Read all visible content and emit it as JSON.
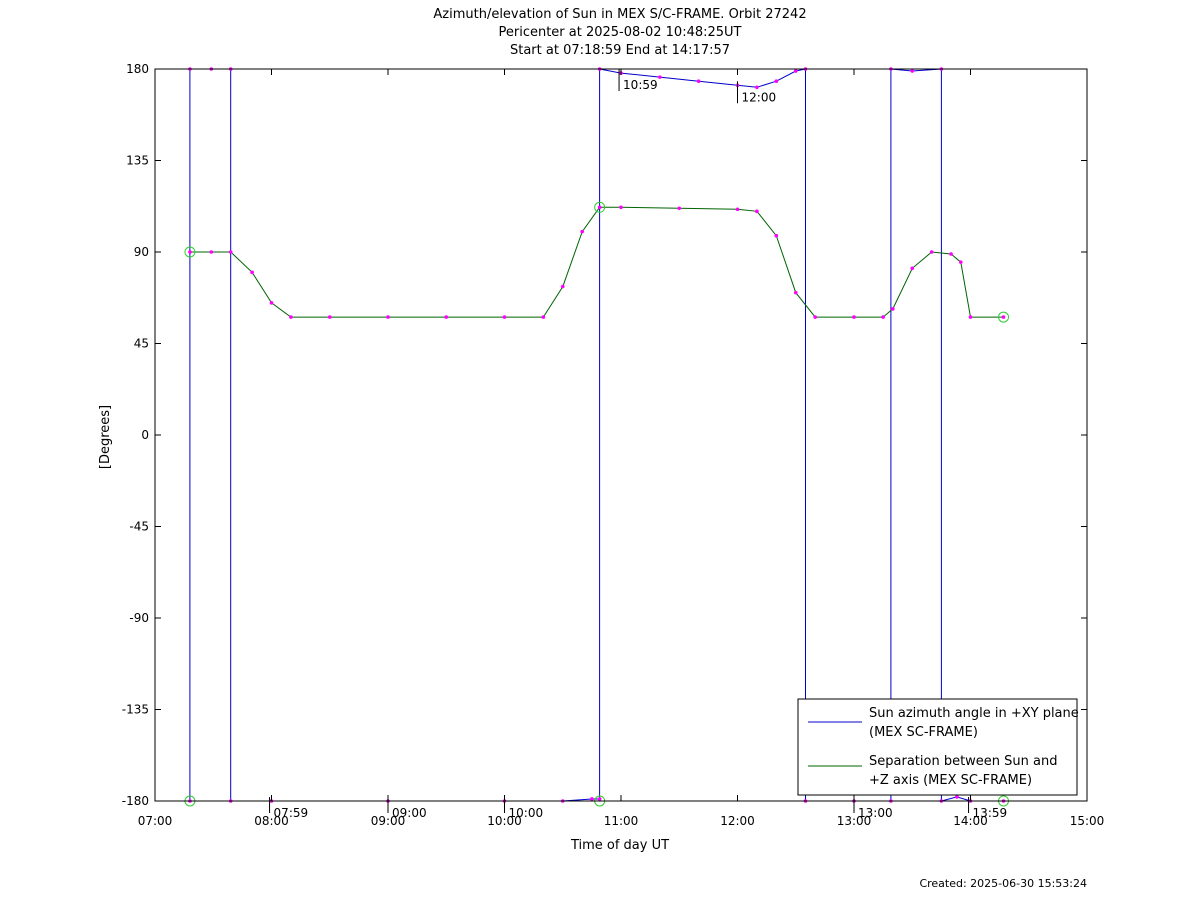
{
  "chart_data": {
    "type": "line",
    "title": [
      "Azimuth/elevation of Sun in MEX S/C-FRAME.  Orbit 27242",
      "Pericenter at 2025-08-02 10:48:25UT",
      "Start at 07:18:59 End at 14:17:57"
    ],
    "xlabel": "Time of day UT",
    "ylabel": "[Degrees]",
    "xlim": [
      "07:00",
      "15:00"
    ],
    "ylim": [
      -180,
      180
    ],
    "xticks": [
      "07:00",
      "08:00",
      "09:00",
      "10:00",
      "11:00",
      "12:00",
      "13:00",
      "14:00",
      "15:00"
    ],
    "yticks": [
      180,
      135,
      90,
      45,
      0,
      -45,
      -90,
      -135,
      -180
    ],
    "grid": false,
    "legend_position": "bottom-right",
    "series": [
      {
        "name": "Sun azimuth angle in +XY plane (MEX SC-FRAME)",
        "color": "#0000cc",
        "points": [
          [
            "07:18",
            -180
          ],
          [
            "07:18",
            180
          ],
          [
            "07:29",
            180
          ],
          [
            "07:39",
            180
          ],
          [
            "07:39",
            -180
          ],
          [
            "08:00",
            -180
          ],
          [
            "09:00",
            -180
          ],
          [
            "10:00",
            -180
          ],
          [
            "10:30",
            -180
          ],
          [
            "10:45",
            -179
          ],
          [
            "10:49",
            -179
          ],
          [
            "10:49",
            180
          ],
          [
            "11:00",
            178
          ],
          [
            "11:20",
            176
          ],
          [
            "11:40",
            174
          ],
          [
            "12:00",
            172
          ],
          [
            "12:10",
            171
          ],
          [
            "12:20",
            174
          ],
          [
            "12:30",
            179
          ],
          [
            "12:35",
            180
          ],
          [
            "12:35",
            -180
          ],
          [
            "13:00",
            -180
          ],
          [
            "13:19",
            -180
          ],
          [
            "13:19",
            180
          ],
          [
            "13:30",
            179
          ],
          [
            "13:45",
            180
          ],
          [
            "13:45",
            -180
          ],
          [
            "13:53",
            -178
          ],
          [
            "14:00",
            -180
          ],
          [
            "14:17",
            -180
          ]
        ]
      },
      {
        "name": "Separation between Sun and +Z axis (MEX SC-FRAME)",
        "color": "#006400",
        "points": [
          [
            "07:18",
            90
          ],
          [
            "07:29",
            90
          ],
          [
            "07:39",
            90
          ],
          [
            "07:50",
            80
          ],
          [
            "08:00",
            65
          ],
          [
            "08:10",
            58
          ],
          [
            "08:30",
            58
          ],
          [
            "09:00",
            58
          ],
          [
            "09:30",
            58
          ],
          [
            "10:00",
            58
          ],
          [
            "10:20",
            58
          ],
          [
            "10:30",
            73
          ],
          [
            "10:40",
            100
          ],
          [
            "10:49",
            112
          ],
          [
            "11:00",
            112
          ],
          [
            "11:30",
            111.5
          ],
          [
            "12:00",
            111
          ],
          [
            "12:10",
            110
          ],
          [
            "12:20",
            98
          ],
          [
            "12:30",
            70
          ],
          [
            "12:40",
            58
          ],
          [
            "13:00",
            58
          ],
          [
            "13:15",
            58
          ],
          [
            "13:20",
            62
          ],
          [
            "13:30",
            82
          ],
          [
            "13:40",
            90
          ],
          [
            "13:50",
            89
          ],
          [
            "13:55",
            85
          ],
          [
            "14:00",
            58
          ],
          [
            "14:17",
            58
          ]
        ]
      }
    ],
    "annotations": [
      "10:59",
      "12:00",
      "07:59",
      "09:00",
      "10:00",
      "13:00",
      "13:59"
    ],
    "footer": "Created: 2025-06-30 15:53:24"
  }
}
